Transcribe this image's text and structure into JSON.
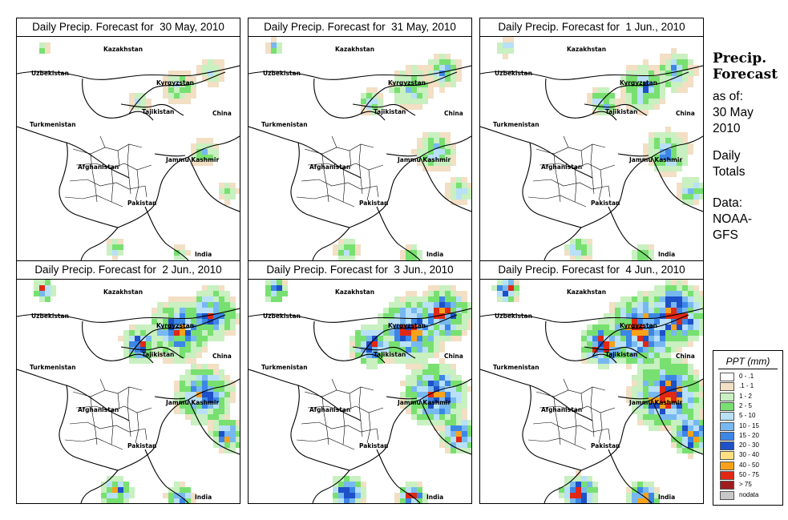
{
  "panels": [
    {
      "title": "Daily Precip. Forecast for  30 May, 2010",
      "intensity": 0.15
    },
    {
      "title": "Daily Precip. Forecast for  31 May, 2010",
      "intensity": 0.35
    },
    {
      "title": "Daily Precip. Forecast for  1 Jun., 2010",
      "intensity": 0.45
    },
    {
      "title": "Daily Precip. Forecast for  2 Jun., 2010",
      "intensity": 0.75
    },
    {
      "title": "Daily Precip. Forecast for  3 Jun., 2010",
      "intensity": 0.85
    },
    {
      "title": "Daily Precip. Forecast for  4 Jun., 2010",
      "intensity": 1.0
    }
  ],
  "map_labels": {
    "kazakhstan": "Kazakhstan",
    "uzbekistan": "Uzbekistan",
    "kyrgyzstan": "Kyrgyzstan",
    "tajikistan": "Tajikistan",
    "turkmenistan": "Turkmenistan",
    "china": "China",
    "jammu_kashmir": "Jammu Kashmir",
    "afghanistan": "Afghanistan",
    "pakistan": "Pakistan",
    "india": "India"
  },
  "sidebar": {
    "title_line1": "Precip.",
    "title_line2": "Forecast",
    "as_of": "as of:",
    "date_line1": "30 May",
    "date_line2": "2010",
    "totals_line1": "Daily",
    "totals_line2": "Totals",
    "data_line1": "Data:",
    "data_line2": "NOAA-",
    "data_line3": "GFS"
  },
  "legend": {
    "title": "PPT (mm)",
    "items": [
      {
        "label": "0 - .1",
        "color": "#ffffff"
      },
      {
        "label": ".1 - 1",
        "color": "#f2dfc4"
      },
      {
        "label": "1 - 2",
        "color": "#c8f0c0"
      },
      {
        "label": "2 - 5",
        "color": "#78e070"
      },
      {
        "label": "5 - 10",
        "color": "#b8e0f8"
      },
      {
        "label": "10 - 15",
        "color": "#78b8f0"
      },
      {
        "label": "15 - 20",
        "color": "#3c86e6"
      },
      {
        "label": "20 - 30",
        "color": "#1e50c8"
      },
      {
        "label": "30 - 40",
        "color": "#ffe080"
      },
      {
        "label": "40 - 50",
        "color": "#f7a21a"
      },
      {
        "label": "50 - 75",
        "color": "#e02814"
      },
      {
        "label": "> 75",
        "color": "#a01e1e"
      },
      {
        "label": "nodata",
        "color": "#c8c8c8"
      }
    ]
  }
}
